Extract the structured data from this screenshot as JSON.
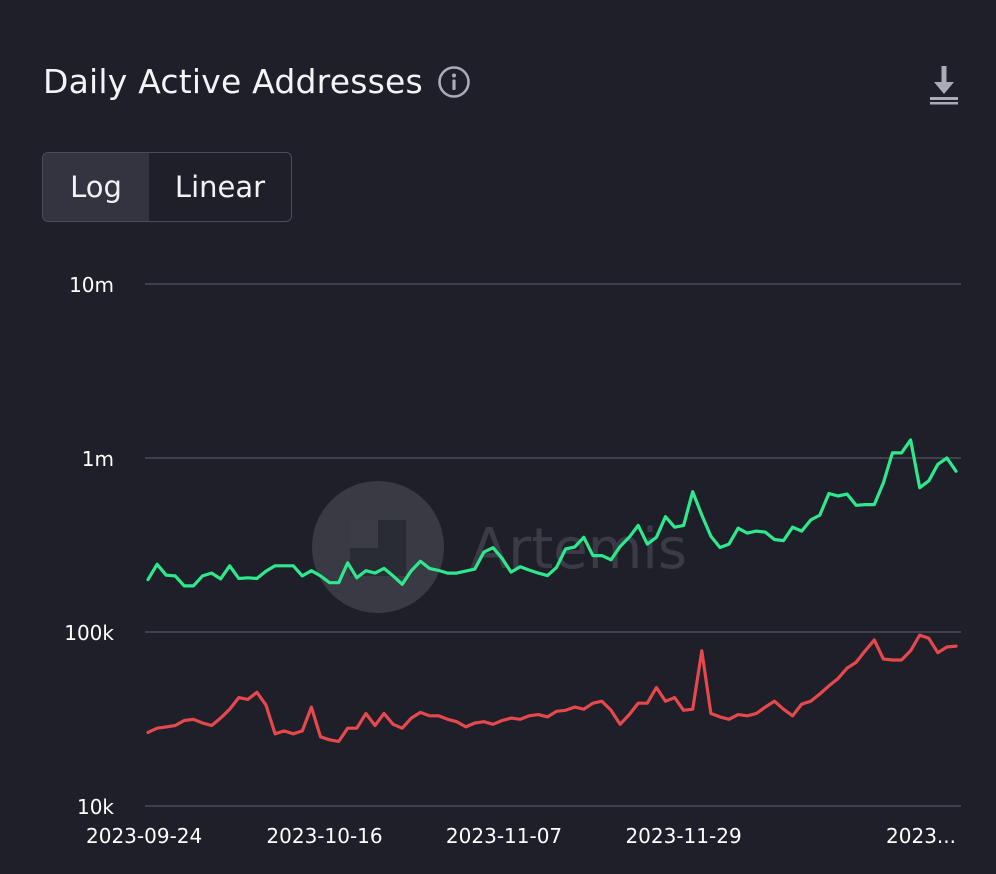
{
  "header": {
    "title": "Daily Active Addresses",
    "info_icon": "info-circle-icon",
    "download_icon": "download-icon"
  },
  "scale_toggle": {
    "options": [
      "Log",
      "Linear"
    ],
    "selected": "Log"
  },
  "watermark": {
    "text": "Artemis"
  },
  "colors": {
    "background": "#1e1f29",
    "grid": "#4a4c58",
    "series_green": "#2ee88e",
    "series_red": "#e5484d"
  },
  "chart_data": {
    "type": "line",
    "y_scale": "log",
    "ylim": [
      10000,
      10000000
    ],
    "y_ticks": [
      {
        "value": 10000000,
        "label": "10m"
      },
      {
        "value": 1000000,
        "label": "1m"
      },
      {
        "value": 100000,
        "label": "100k"
      },
      {
        "value": 10000,
        "label": "10k"
      }
    ],
    "x_start": "2023-09-24",
    "x_end": "2024-01-02",
    "x_ticks": [
      {
        "date": "2023-09-24",
        "label": "2023-09-24"
      },
      {
        "date": "2023-10-16",
        "label": "2023-10-16"
      },
      {
        "date": "2023-11-07",
        "label": "2023-11-07"
      },
      {
        "date": "2023-11-29",
        "label": "2023-11-29"
      },
      {
        "date": "2023-12-21",
        "label": "2023..."
      }
    ],
    "grid": "horizontal",
    "series": [
      {
        "color": "#2ee88e",
        "values": [
          200000,
          245000,
          212000,
          210000,
          184000,
          184000,
          210000,
          218000,
          202000,
          240000,
          203000,
          205000,
          203000,
          224000,
          240000,
          240000,
          240000,
          210000,
          225000,
          210000,
          192000,
          192000,
          250000,
          205000,
          225000,
          218000,
          232000,
          210000,
          188000,
          225000,
          255000,
          232000,
          226000,
          218000,
          218000,
          224000,
          230000,
          288000,
          305000,
          265000,
          221000,
          237000,
          227000,
          218000,
          211000,
          235000,
          300000,
          308000,
          350000,
          275000,
          275000,
          260000,
          310000,
          350000,
          410000,
          320000,
          350000,
          460000,
          400000,
          410000,
          640000,
          470000,
          355000,
          306000,
          320000,
          395000,
          370000,
          380000,
          375000,
          340000,
          335000,
          400000,
          380000,
          440000,
          470000,
          625000,
          605000,
          620000,
          535000,
          540000,
          540000,
          720000,
          1070000,
          1070000,
          1270000,
          675000,
          740000,
          920000,
          1000000,
          840000
        ]
      },
      {
        "color": "#e5484d",
        "values": [
          26500,
          28000,
          28500,
          29000,
          31000,
          31500,
          30000,
          29000,
          32000,
          36000,
          42000,
          41000,
          45000,
          38000,
          26000,
          27000,
          26000,
          27000,
          37000,
          25000,
          24000,
          23500,
          28000,
          28000,
          34000,
          29000,
          34000,
          29500,
          28000,
          32000,
          34500,
          33000,
          33000,
          31500,
          30500,
          28500,
          30000,
          30500,
          29500,
          31000,
          32000,
          31500,
          33000,
          33500,
          32500,
          35000,
          35500,
          37000,
          36000,
          39000,
          40000,
          35500,
          29500,
          33500,
          39000,
          39000,
          48000,
          40000,
          42000,
          35500,
          36000,
          78000,
          34000,
          32500,
          31500,
          33500,
          33000,
          34000,
          37000,
          40000,
          36000,
          33000,
          38500,
          40000,
          44000,
          49000,
          54000,
          62000,
          67000,
          78000,
          90000,
          70000,
          69000,
          69000,
          78000,
          96000,
          92000,
          76000,
          82000,
          83000
        ]
      }
    ]
  }
}
